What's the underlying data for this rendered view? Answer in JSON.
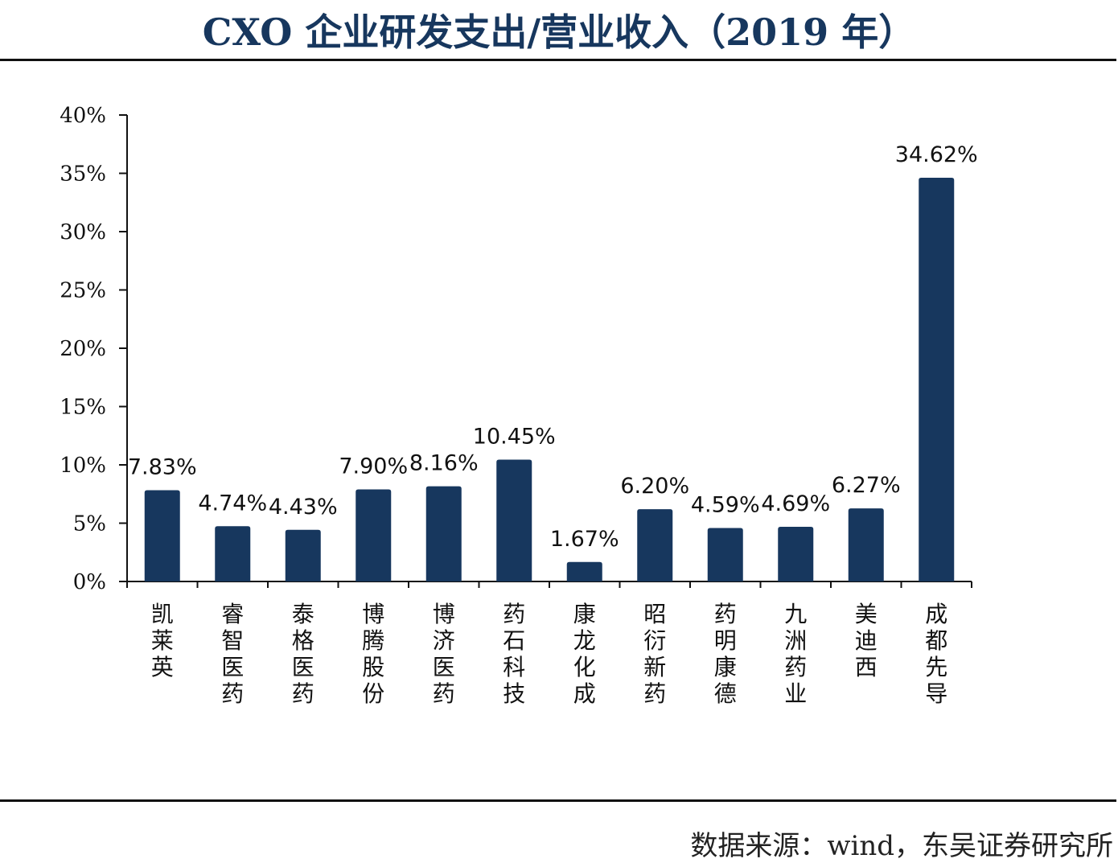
{
  "title": "CXO 企业研发支出/营业收入（2019 年）",
  "source": "数据来源：wind，东吴证券研究所",
  "chart_data": {
    "type": "bar",
    "title": "CXO 企业研发支出/营业收入（2019 年）",
    "xlabel": "",
    "ylabel": "",
    "ylim": [
      0,
      40
    ],
    "yticks": [
      "0%",
      "5%",
      "10%",
      "15%",
      "20%",
      "25%",
      "30%",
      "35%",
      "40%"
    ],
    "grid": false,
    "legend": "none",
    "bar_color": "#17375e",
    "categories": [
      "凯莱英",
      "睿智医药",
      "泰格医药",
      "博腾股份",
      "博济医药",
      "药石科技",
      "康龙化成",
      "昭衍新药",
      "药明康德",
      "九洲药业",
      "美迪西",
      "成都先导"
    ],
    "values": [
      7.83,
      4.74,
      4.43,
      7.9,
      8.16,
      10.45,
      1.67,
      6.2,
      4.59,
      4.69,
      6.27,
      34.62
    ],
    "data_labels": [
      "7.83%",
      "4.74%",
      "4.43%",
      "7.90%",
      "8.16%",
      "10.45%",
      "1.67%",
      "6.20%",
      "4.59%",
      "4.69%",
      "6.27%",
      "34.62%"
    ]
  }
}
